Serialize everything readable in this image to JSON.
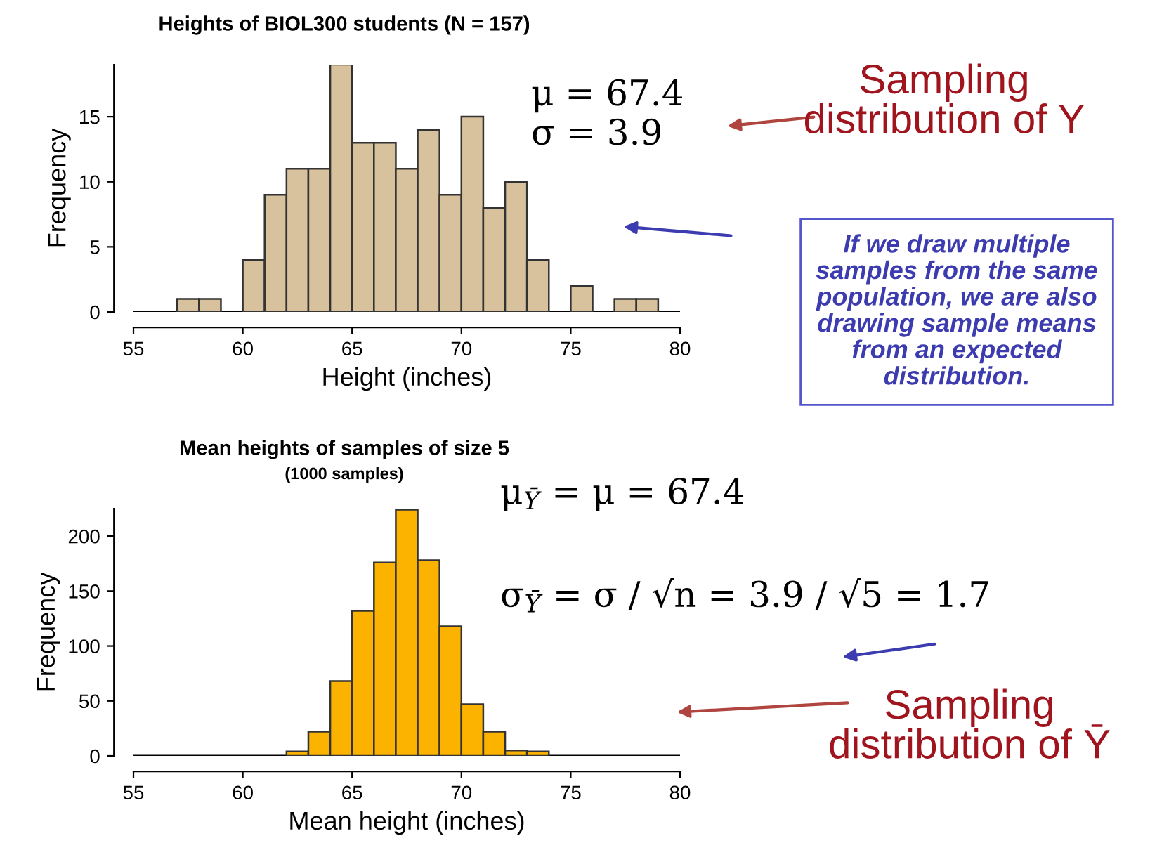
{
  "chart_data": [
    {
      "type": "histogram",
      "title": "Heights of BIOL300 students (N = 157)",
      "xlabel": "Height (inches)",
      "ylabel": "Frequency",
      "color": "#d8c29d",
      "bins": [
        57,
        58,
        59,
        60,
        61,
        62,
        63,
        64,
        65,
        66,
        67,
        68,
        69,
        70,
        71,
        72,
        73,
        74,
        75,
        76,
        77,
        78,
        79
      ],
      "values": [
        1,
        1,
        0,
        4,
        9,
        11,
        11,
        19,
        13,
        13,
        11,
        14,
        9,
        15,
        8,
        10,
        4,
        0,
        2,
        0,
        1,
        1
      ],
      "xlim": [
        55,
        80
      ],
      "xticks": [
        55,
        60,
        65,
        70,
        75,
        80
      ],
      "ylim": [
        0,
        19
      ],
      "yticks": [
        0,
        5,
        10,
        15
      ],
      "ref_lines": [
        {
          "axis": "y",
          "value": 0,
          "color": "#000000"
        }
      ],
      "annotations": [
        "μ = 67.4\nσ = 3.9",
        "Sampling\ndistribution of Y",
        "If we draw multiple\nsamples from the same\npopulation, we are also\ndrawing sample means\nfrom an expected\ndistribution."
      ]
    },
    {
      "type": "histogram",
      "title": "Mean heights of samples of size 5",
      "subtitle": "(1000 samples)",
      "xlabel": "Mean height (inches)",
      "ylabel": "Frequency",
      "color": "#fbb300",
      "bins": [
        62,
        63,
        64,
        65,
        66,
        67,
        68,
        69,
        70,
        71,
        72,
        73,
        74
      ],
      "values": [
        4,
        22,
        68,
        132,
        176,
        224,
        178,
        118,
        47,
        22,
        5,
        4
      ],
      "xlim": [
        55,
        80
      ],
      "xticks": [
        55,
        60,
        65,
        70,
        75,
        80
      ],
      "ylim": [
        0,
        225
      ],
      "yticks": [
        0,
        50,
        100,
        150,
        200
      ],
      "ref_lines": [
        {
          "axis": "y",
          "value": 0,
          "color": "#000000"
        }
      ],
      "annotations": [
        "μ$_{Ȳ}$ = μ = 67.4",
        "σ$_{Ȳ}$ = σ / √n = 3.9 / √5 = 1.7",
        "Sampling\ndistribution of Ȳ"
      ]
    }
  ]
}
